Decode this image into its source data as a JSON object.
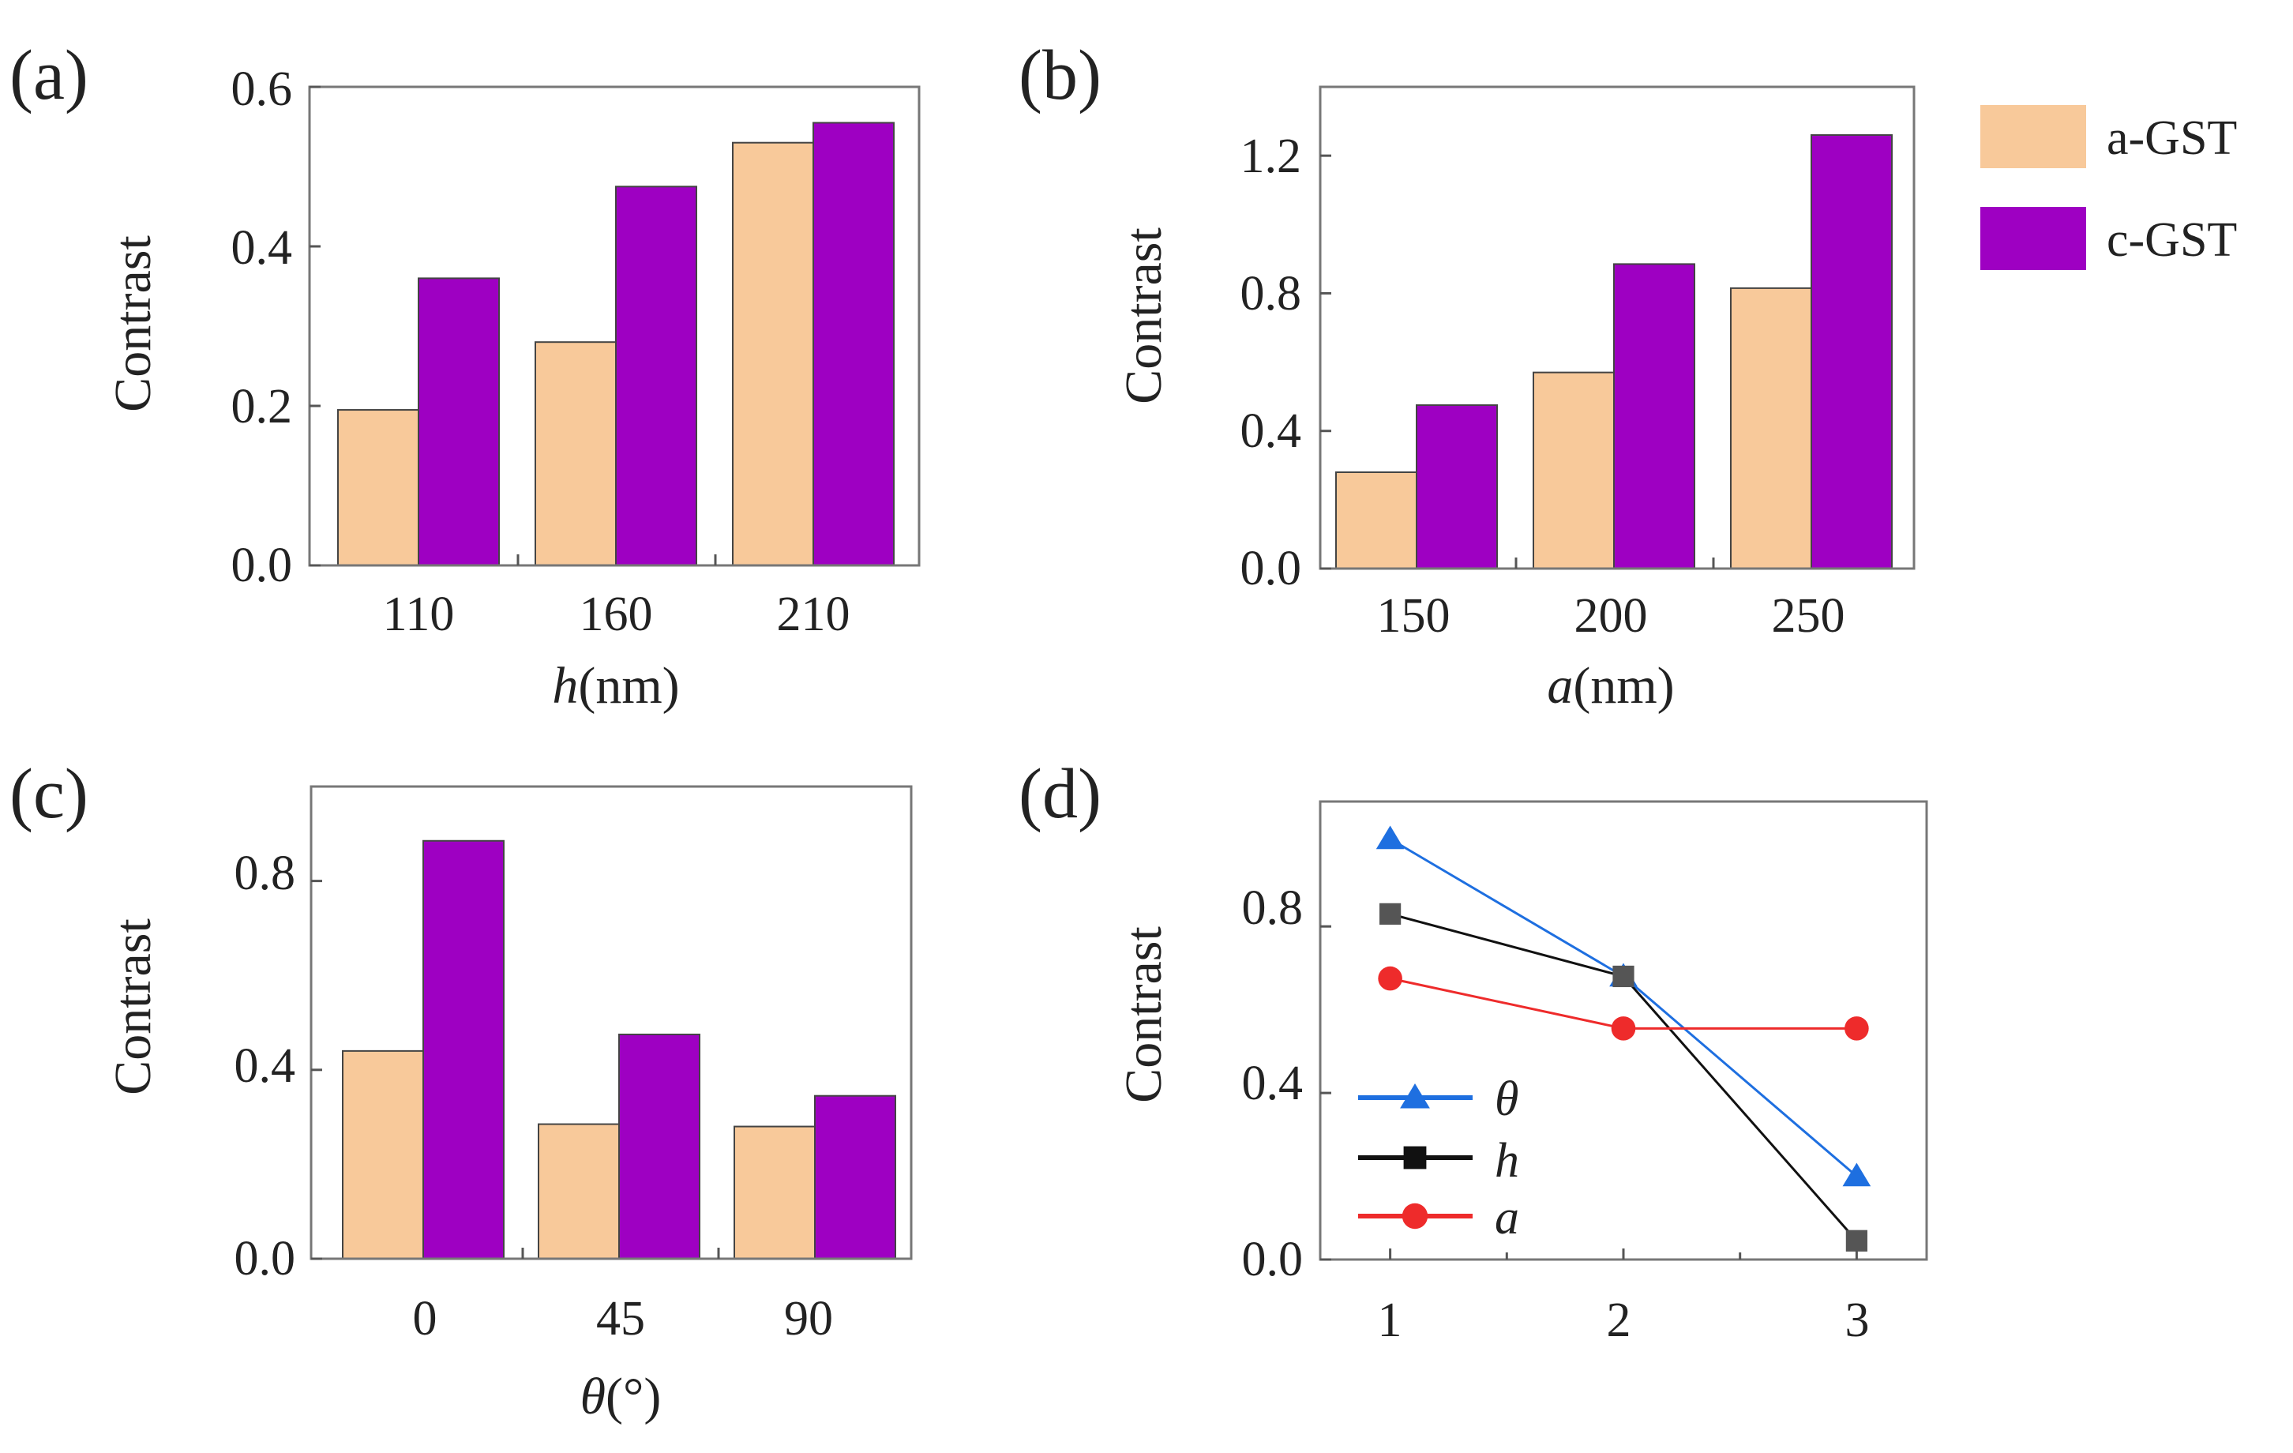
{
  "colors": {
    "a_gst": "#F8C99A",
    "c_gst": "#9E00C2",
    "theta": "#1E6FE0",
    "h": "#111111",
    "a": "#EE2B2B",
    "h_marker": "#555555"
  },
  "legend": {
    "items": [
      {
        "label": "a-GST",
        "color_key": "a_gst"
      },
      {
        "label": "c-GST",
        "color_key": "c_gst"
      }
    ]
  },
  "chart_data": [
    {
      "panel": "(a)",
      "type": "bar",
      "categories": [
        "110",
        "160",
        "210"
      ],
      "series": [
        {
          "name": "a-GST",
          "values": [
            0.195,
            0.28,
            0.53
          ]
        },
        {
          "name": "c-GST",
          "values": [
            0.36,
            0.475,
            0.555
          ]
        }
      ],
      "xlabel_italic": "h",
      "xlabel_rest": "(nm)",
      "ylabel": "Contrast",
      "ylim": [
        0,
        0.6
      ],
      "yticks": [
        "0.0",
        "0.2",
        "0.4",
        "0.6"
      ]
    },
    {
      "panel": "(b)",
      "type": "bar",
      "categories": [
        "150",
        "200",
        "250"
      ],
      "series": [
        {
          "name": "a-GST",
          "values": [
            0.28,
            0.57,
            0.815
          ]
        },
        {
          "name": "c-GST",
          "values": [
            0.475,
            0.885,
            1.26
          ]
        }
      ],
      "xlabel_italic": "a",
      "xlabel_rest": "(nm)",
      "ylabel": "Contrast",
      "ylim": [
        0,
        1.4
      ],
      "yticks": [
        "0.0",
        "0.4",
        "0.8",
        "1.2"
      ]
    },
    {
      "panel": "(c)",
      "type": "bar",
      "categories": [
        "0",
        "45",
        "90"
      ],
      "series": [
        {
          "name": "a-GST",
          "values": [
            0.44,
            0.285,
            0.28
          ]
        },
        {
          "name": "c-GST",
          "values": [
            0.885,
            0.475,
            0.345
          ]
        }
      ],
      "xlabel_italic": "θ",
      "xlabel_rest": "(°)",
      "ylabel": "Contrast",
      "ylim": [
        0,
        1.0
      ],
      "yticks": [
        "0.0",
        "0.4",
        "0.8"
      ]
    },
    {
      "panel": "(d)",
      "type": "line",
      "x": [
        1,
        2,
        3
      ],
      "series": [
        {
          "name": "θ",
          "marker": "triangle",
          "values": [
            1.01,
            0.68,
            0.2
          ]
        },
        {
          "name": "h",
          "marker": "square",
          "values": [
            0.83,
            0.68,
            0.045
          ]
        },
        {
          "name": "a",
          "marker": "circle",
          "values": [
            0.675,
            0.555,
            0.555
          ]
        }
      ],
      "xlabel": "",
      "ylabel": "Contrast",
      "xlim": [
        0.7,
        3.3
      ],
      "xticks": [
        "1",
        "2",
        "3"
      ],
      "ylim": [
        0,
        1.1
      ],
      "yticks": [
        "0.0",
        "0.4",
        "0.8"
      ]
    }
  ]
}
